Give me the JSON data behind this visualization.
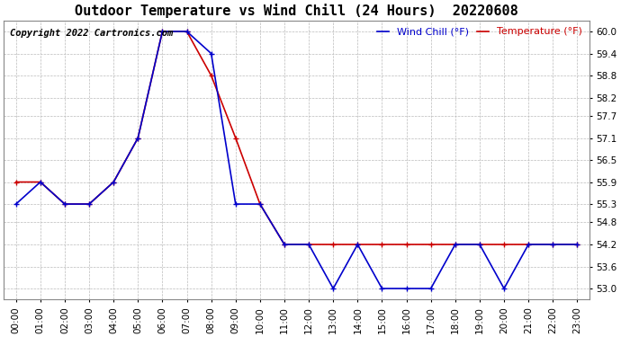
{
  "title": "Outdoor Temperature vs Wind Chill (24 Hours)  20220608",
  "copyright_text": "Copyright 2022 Cartronics.com",
  "legend_wind_chill": "Wind Chill (°F)",
  "legend_temperature": "Temperature (°F)",
  "x_labels": [
    "00:00",
    "01:00",
    "02:00",
    "03:00",
    "04:00",
    "05:00",
    "06:00",
    "07:00",
    "08:00",
    "09:00",
    "10:00",
    "11:00",
    "12:00",
    "13:00",
    "14:00",
    "15:00",
    "16:00",
    "17:00",
    "18:00",
    "19:00",
    "20:00",
    "21:00",
    "22:00",
    "23:00"
  ],
  "temperature": [
    55.9,
    55.9,
    55.3,
    55.3,
    55.9,
    57.1,
    60.0,
    60.0,
    58.8,
    57.1,
    55.3,
    54.2,
    54.2,
    54.2,
    54.2,
    54.2,
    54.2,
    54.2,
    54.2,
    54.2,
    54.2,
    54.2,
    54.2,
    54.2
  ],
  "wind_chill": [
    55.3,
    55.9,
    55.3,
    55.3,
    55.9,
    57.1,
    60.0,
    60.0,
    59.4,
    55.3,
    55.3,
    54.2,
    54.2,
    53.0,
    54.2,
    53.0,
    53.0,
    53.0,
    54.2,
    54.2,
    53.0,
    54.2,
    54.2,
    54.2
  ],
  "temp_color": "#cc0000",
  "wind_color": "#0000cc",
  "ylim_min": 52.7,
  "ylim_max": 60.3,
  "yticks": [
    53.0,
    53.6,
    54.2,
    54.8,
    55.3,
    55.9,
    56.5,
    57.1,
    57.7,
    58.2,
    58.8,
    59.4,
    60.0
  ],
  "background_color": "#ffffff",
  "grid_color": "#bbbbbb",
  "title_fontsize": 11,
  "tick_fontsize": 7.5,
  "copyright_fontsize": 7.5
}
